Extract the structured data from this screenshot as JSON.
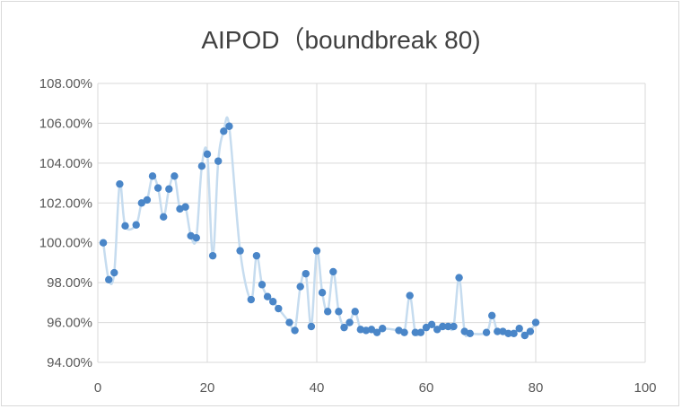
{
  "chart_data": {
    "type": "scatter",
    "title": "AIPOD（boundbreak 80)",
    "xlabel": "",
    "ylabel": "",
    "xlim": [
      0,
      100
    ],
    "ylim": [
      94,
      108
    ],
    "x_ticks": [
      0,
      20,
      40,
      60,
      80,
      100
    ],
    "x_tick_labels": [
      "0",
      "20",
      "40",
      "60",
      "80",
      "100"
    ],
    "y_ticks": [
      94,
      96,
      98,
      100,
      102,
      104,
      106,
      108
    ],
    "y_tick_labels": [
      "94.00%",
      "96.00%",
      "98.00%",
      "100.00%",
      "102.00%",
      "104.00%",
      "106.00%",
      "108.00%"
    ],
    "grid": true,
    "legend": "none",
    "colors": {
      "marker": "#4a86c8",
      "line": "#c6dcef",
      "grid": "#d9d9d9",
      "text": "#595959",
      "title": "#404040"
    },
    "series": [
      {
        "x": [
          1,
          2,
          3,
          4,
          5,
          7,
          8,
          9,
          10,
          11,
          12,
          13,
          14,
          15,
          16,
          17,
          18,
          19,
          20,
          21,
          22,
          23,
          24,
          26,
          28,
          29,
          30,
          31,
          32,
          33,
          35,
          36,
          37,
          38,
          39,
          40,
          41,
          42,
          43,
          44,
          45,
          46,
          47,
          48,
          49,
          50,
          51,
          52,
          55,
          56,
          57,
          58,
          59,
          60,
          61,
          62,
          63,
          64,
          65,
          66,
          67,
          68,
          71,
          72,
          73,
          74,
          75,
          76,
          77,
          78,
          79,
          80
        ],
        "y": [
          100.0,
          98.15,
          98.5,
          102.95,
          100.85,
          100.9,
          102.0,
          102.15,
          103.35,
          102.75,
          101.3,
          102.7,
          103.35,
          101.7,
          101.8,
          100.35,
          100.25,
          103.85,
          104.45,
          99.35,
          104.1,
          105.6,
          105.85,
          99.6,
          97.15,
          99.35,
          97.9,
          97.3,
          97.05,
          96.7,
          96.0,
          95.6,
          97.8,
          98.45,
          95.8,
          99.6,
          97.5,
          96.55,
          98.55,
          96.55,
          95.75,
          96.0,
          96.55,
          95.65,
          95.6,
          95.65,
          95.5,
          95.7,
          95.6,
          95.5,
          97.35,
          95.5,
          95.5,
          95.75,
          95.9,
          95.65,
          95.8,
          95.8,
          95.8,
          98.25,
          95.55,
          95.45,
          95.5,
          96.35,
          95.55,
          95.55,
          95.45,
          95.45,
          95.7,
          95.35,
          95.55,
          96.0
        ]
      }
    ]
  }
}
